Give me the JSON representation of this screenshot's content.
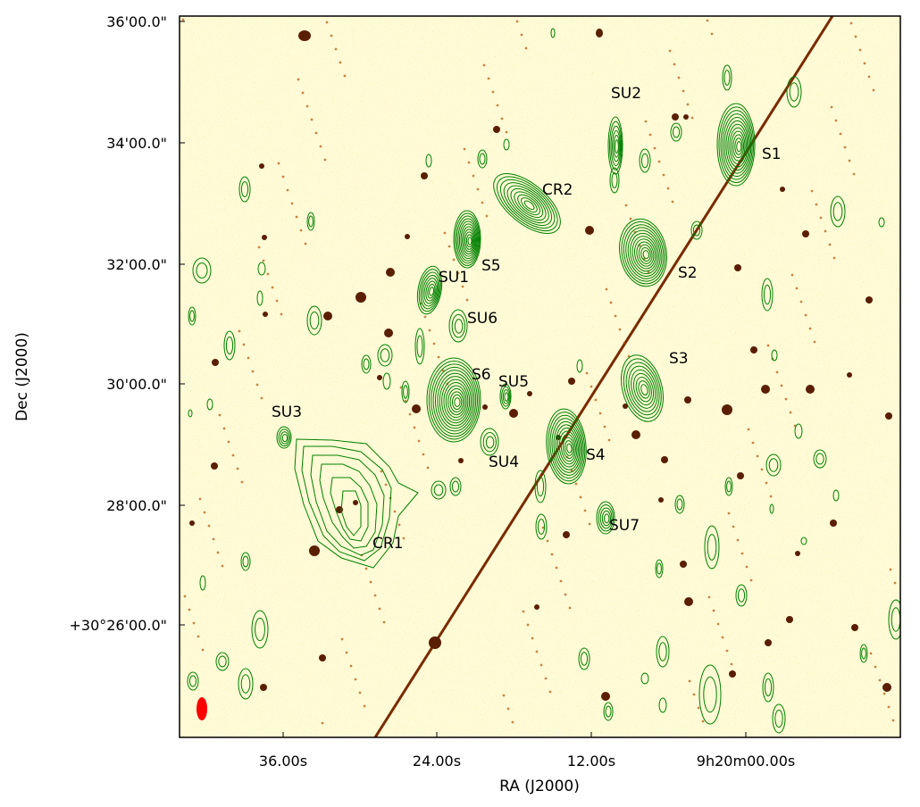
{
  "figure": {
    "x_axis_title": "RA (J2000)",
    "y_axis_title": "Dec (J2000)",
    "x_ticks": [
      "36.00s",
      "24.00s",
      "12.00s",
      "9h20m00.00s"
    ],
    "y_ticks": [
      "36'00.0\"",
      "34'00.0\"",
      "32'00.0\"",
      "30'00.0\"",
      "28'00.0\"",
      "+30°26'00.0\""
    ]
  },
  "sources": [
    {
      "id": "SU2"
    },
    {
      "id": "S1"
    },
    {
      "id": "CR2"
    },
    {
      "id": "S5"
    },
    {
      "id": "SU1"
    },
    {
      "id": "S2"
    },
    {
      "id": "SU6"
    },
    {
      "id": "S3"
    },
    {
      "id": "S6"
    },
    {
      "id": "SU5"
    },
    {
      "id": "SU3"
    },
    {
      "id": "S4"
    },
    {
      "id": "SU4"
    },
    {
      "id": "SU7"
    },
    {
      "id": "CR1"
    }
  ],
  "colors": {
    "background_image": "#fffbd6",
    "contour": "#008000",
    "star": "#5a1e02",
    "beam": "#ff0000"
  },
  "icons": {
    "beam_marker": "red-ellipse"
  }
}
